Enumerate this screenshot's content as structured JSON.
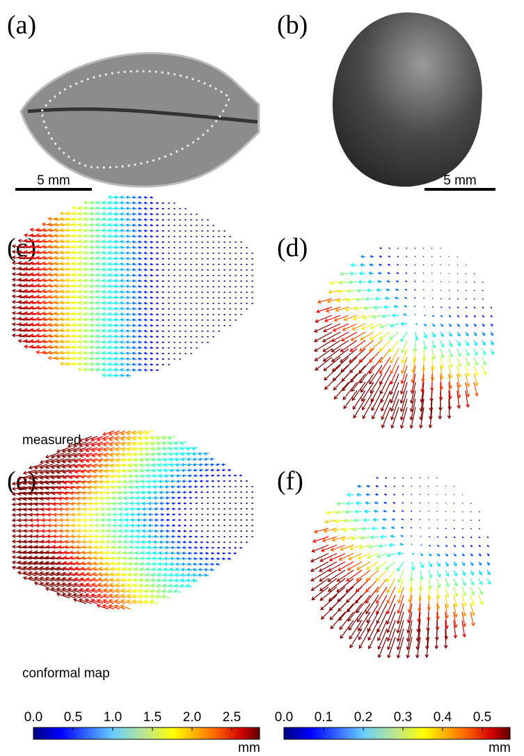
{
  "panels": {
    "a": "(a)",
    "b": "(b)",
    "c": "(c)",
    "d": "(d)",
    "e": "(e)",
    "f": "(f)"
  },
  "scale_bars": {
    "a": "5 mm",
    "b": "5 mm"
  },
  "captions": {
    "measured": "measured",
    "conformal": "conformal map"
  },
  "colorbars": [
    {
      "ticks": [
        "0.0",
        "0.5",
        "1.0",
        "1.5",
        "2.0",
        "2.5"
      ],
      "unit": "mm"
    },
    {
      "ticks": [
        "0.0",
        "0.1",
        "0.2",
        "0.3",
        "0.4",
        "0.5"
      ],
      "unit": "mm"
    }
  ]
}
